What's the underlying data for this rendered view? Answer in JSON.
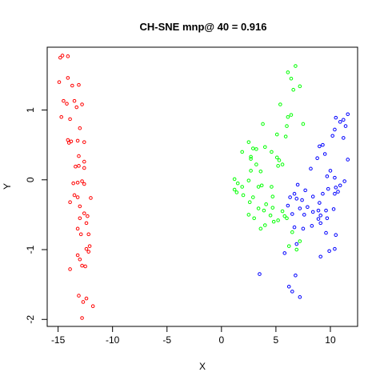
{
  "chart_data": {
    "type": "scatter",
    "title": "CH-SNE mnp@ 40 = 0.916",
    "xlabel": "X",
    "ylabel": "Y",
    "xlim": [
      -16,
      12.5
    ],
    "ylim": [
      -2.1,
      1.9
    ],
    "xticks": [
      -15,
      -10,
      -5,
      0,
      5,
      10
    ],
    "yticks": [
      -2,
      -1,
      0,
      1
    ],
    "xtick_labels": [
      "-15",
      "-10",
      "-5",
      "0",
      "5",
      "10"
    ],
    "ytick_labels": [
      "-2",
      "-1",
      "0",
      "1"
    ],
    "grid": false,
    "legend": "none",
    "marker": "open-circle",
    "series": [
      {
        "color": "#ff0000",
        "points": [
          [
            -14.8,
            1.75
          ],
          [
            -14.6,
            1.78
          ],
          [
            -14.1,
            1.77
          ],
          [
            -14.9,
            1.4
          ],
          [
            -14.1,
            1.46
          ],
          [
            -13.7,
            1.35
          ],
          [
            -13.1,
            1.36
          ],
          [
            -14.5,
            1.13
          ],
          [
            -14.2,
            1.09
          ],
          [
            -13.5,
            1.13
          ],
          [
            -13.3,
            1.04
          ],
          [
            -12.8,
            1.08
          ],
          [
            -14.7,
            0.9
          ],
          [
            -13.9,
            0.87
          ],
          [
            -13.0,
            0.74
          ],
          [
            -14.1,
            0.57
          ],
          [
            -13.8,
            0.55
          ],
          [
            -14.0,
            0.53
          ],
          [
            -13.2,
            0.56
          ],
          [
            -12.6,
            0.54
          ],
          [
            -13.1,
            0.34
          ],
          [
            -12.6,
            0.26
          ],
          [
            -13.4,
            0.19
          ],
          [
            -13.1,
            0.2
          ],
          [
            -12.6,
            0.17
          ],
          [
            -13.6,
            -0.05
          ],
          [
            -13.2,
            -0.04
          ],
          [
            -12.8,
            -0.02
          ],
          [
            -12.6,
            -0.06
          ],
          [
            -13.5,
            -0.22
          ],
          [
            -13.2,
            -0.25
          ],
          [
            -12.0,
            -0.26
          ],
          [
            -13.9,
            -0.32
          ],
          [
            -13.0,
            -0.38
          ],
          [
            -12.6,
            -0.48
          ],
          [
            -13.0,
            -0.55
          ],
          [
            -12.3,
            -0.52
          ],
          [
            -12.4,
            -0.62
          ],
          [
            -13.2,
            -0.7
          ],
          [
            -12.9,
            -0.78
          ],
          [
            -12.2,
            -0.78
          ],
          [
            -12.1,
            -0.95
          ],
          [
            -12.4,
            -0.99
          ],
          [
            -12.2,
            -1.03
          ],
          [
            -13.2,
            -1.08
          ],
          [
            -13.0,
            -1.14
          ],
          [
            -12.8,
            -1.23
          ],
          [
            -12.5,
            -1.24
          ],
          [
            -13.9,
            -1.28
          ],
          [
            -13.1,
            -1.66
          ],
          [
            -12.4,
            -1.7
          ],
          [
            -12.7,
            -1.75
          ],
          [
            -11.8,
            -1.81
          ],
          [
            -12.8,
            -1.98
          ]
        ]
      },
      {
        "color": "#00ff00",
        "points": [
          [
            6.8,
            1.63
          ],
          [
            6.1,
            1.54
          ],
          [
            6.4,
            1.45
          ],
          [
            7.2,
            1.34
          ],
          [
            6.6,
            1.29
          ],
          [
            5.4,
            1.08
          ],
          [
            6.4,
            0.93
          ],
          [
            6.1,
            0.9
          ],
          [
            6.0,
            0.77
          ],
          [
            5.9,
            0.62
          ],
          [
            7.5,
            0.8
          ],
          [
            3.8,
            0.8
          ],
          [
            5.1,
            0.65
          ],
          [
            2.5,
            0.54
          ],
          [
            4.0,
            0.47
          ],
          [
            2.9,
            0.45
          ],
          [
            3.2,
            0.44
          ],
          [
            4.6,
            0.4
          ],
          [
            1.9,
            0.4
          ],
          [
            2.7,
            0.33
          ],
          [
            2.7,
            0.3
          ],
          [
            3.2,
            0.22
          ],
          [
            5.1,
            0.32
          ],
          [
            5.3,
            0.28
          ],
          [
            5.6,
            0.22
          ],
          [
            5.2,
            0.2
          ],
          [
            2.7,
            0.13
          ],
          [
            3.6,
            0.12
          ],
          [
            1.2,
            0.01
          ],
          [
            2.5,
            -0.01
          ],
          [
            3.7,
            -0.08
          ],
          [
            1.5,
            -0.05
          ],
          [
            1.9,
            -0.1
          ],
          [
            3.4,
            -0.1
          ],
          [
            4.6,
            -0.1
          ],
          [
            1.2,
            -0.14
          ],
          [
            1.4,
            -0.18
          ],
          [
            2.0,
            -0.22
          ],
          [
            2.9,
            -0.25
          ],
          [
            4.7,
            -0.24
          ],
          [
            2.6,
            -0.32
          ],
          [
            4.1,
            -0.35
          ],
          [
            3.4,
            -0.41
          ],
          [
            4.7,
            -0.4
          ],
          [
            3.9,
            -0.44
          ],
          [
            5.6,
            -0.45
          ],
          [
            2.5,
            -0.5
          ],
          [
            4.5,
            -0.51
          ],
          [
            3.0,
            -0.55
          ],
          [
            5.8,
            -0.52
          ],
          [
            6.0,
            -0.55
          ],
          [
            5.2,
            -0.58
          ],
          [
            4.8,
            -0.6
          ],
          [
            4.0,
            -0.65
          ],
          [
            3.6,
            -0.7
          ],
          [
            6.5,
            -0.75
          ],
          [
            6.2,
            -0.95
          ],
          [
            6.9,
            -1.0
          ],
          [
            7.2,
            -0.88
          ]
        ]
      },
      {
        "color": "#0000ff",
        "points": [
          [
            11.6,
            0.94
          ],
          [
            10.5,
            0.89
          ],
          [
            11.2,
            0.86
          ],
          [
            10.9,
            0.83
          ],
          [
            11.4,
            0.77
          ],
          [
            10.4,
            0.72
          ],
          [
            10.2,
            0.63
          ],
          [
            11.2,
            0.6
          ],
          [
            9.3,
            0.5
          ],
          [
            9.0,
            0.48
          ],
          [
            11.6,
            0.29
          ],
          [
            9.5,
            0.37
          ],
          [
            8.8,
            0.31
          ],
          [
            10.0,
            0.13
          ],
          [
            8.2,
            0.16
          ],
          [
            9.7,
            0.05
          ],
          [
            10.4,
            0.03
          ],
          [
            11.3,
            -0.02
          ],
          [
            10.9,
            -0.08
          ],
          [
            7.0,
            -0.07
          ],
          [
            10.5,
            -0.11
          ],
          [
            10.7,
            -0.17
          ],
          [
            6.7,
            -0.2
          ],
          [
            7.7,
            -0.15
          ],
          [
            9.8,
            -0.13
          ],
          [
            9.3,
            -0.2
          ],
          [
            10.4,
            -0.2
          ],
          [
            8.4,
            -0.24
          ],
          [
            6.3,
            -0.25
          ],
          [
            6.9,
            -0.27
          ],
          [
            7.4,
            -0.29
          ],
          [
            9.0,
            -0.33
          ],
          [
            6.1,
            -0.37
          ],
          [
            7.9,
            -0.39
          ],
          [
            7.2,
            -0.41
          ],
          [
            8.9,
            -0.44
          ],
          [
            9.6,
            -0.44
          ],
          [
            10.3,
            -0.42
          ],
          [
            8.4,
            -0.46
          ],
          [
            6.5,
            -0.49
          ],
          [
            7.6,
            -0.5
          ],
          [
            9.1,
            -0.51
          ],
          [
            8.9,
            -0.56
          ],
          [
            9.7,
            -0.55
          ],
          [
            9.1,
            -0.62
          ],
          [
            8.3,
            -0.66
          ],
          [
            6.7,
            -0.68
          ],
          [
            7.5,
            -0.7
          ],
          [
            9.6,
            -0.76
          ],
          [
            10.5,
            -0.79
          ],
          [
            6.9,
            -0.92
          ],
          [
            10.4,
            -0.99
          ],
          [
            9.9,
            -1.02
          ],
          [
            5.8,
            -1.05
          ],
          [
            9.1,
            -1.1
          ],
          [
            3.5,
            -1.35
          ],
          [
            6.8,
            -1.37
          ],
          [
            6.2,
            -1.53
          ],
          [
            6.5,
            -1.6
          ],
          [
            7.2,
            -1.68
          ]
        ]
      }
    ]
  }
}
